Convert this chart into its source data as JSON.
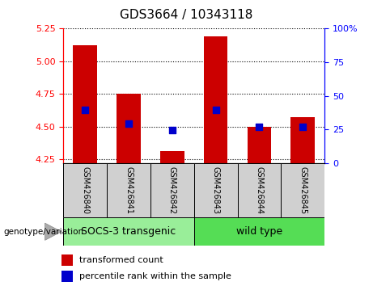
{
  "title": "GDS3664 / 10343118",
  "samples": [
    "GSM426840",
    "GSM426841",
    "GSM426842",
    "GSM426843",
    "GSM426844",
    "GSM426845"
  ],
  "bar_bottoms": [
    4.22,
    4.22,
    4.22,
    4.22,
    4.22,
    4.22
  ],
  "bar_tops": [
    5.12,
    4.75,
    4.31,
    5.19,
    4.5,
    4.57
  ],
  "percentile_values": [
    4.63,
    4.52,
    4.47,
    4.63,
    4.5,
    4.5
  ],
  "ylim": [
    4.22,
    5.25
  ],
  "yticks": [
    4.25,
    4.5,
    4.75,
    5.0,
    5.25
  ],
  "right_yticks": [
    0,
    25,
    50,
    75,
    100
  ],
  "bar_color": "#cc0000",
  "dot_color": "#0000cc",
  "groups": [
    {
      "label": "SOCS-3 transgenic",
      "indices": [
        0,
        1,
        2
      ],
      "color": "#99ee99"
    },
    {
      "label": "wild type",
      "indices": [
        3,
        4,
        5
      ],
      "color": "#55dd55"
    }
  ],
  "genotype_label": "genotype/variation",
  "legend_bar_label": "transformed count",
  "legend_dot_label": "percentile rank within the sample",
  "title_fontsize": 11,
  "tick_fontsize": 8,
  "sample_fontsize": 7,
  "group_fontsize": 9,
  "legend_fontsize": 8
}
